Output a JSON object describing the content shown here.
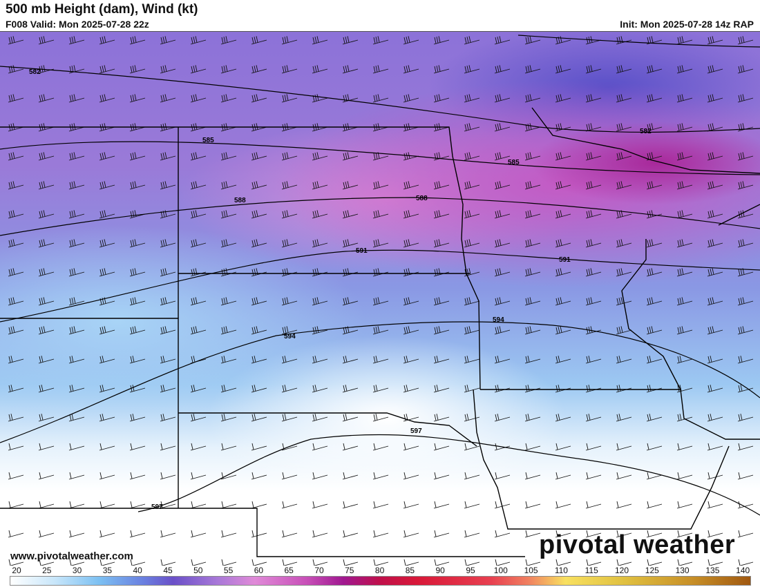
{
  "header": {
    "title": "500 mb Height (dam), Wind (kt)",
    "valid": "F008 Valid: Mon 2025-07-28 22z",
    "init": "Init: Mon 2025-07-28 14z RAP"
  },
  "map": {
    "contour_labels": [
      "582",
      "582",
      "585",
      "585",
      "588",
      "588",
      "591",
      "591",
      "594",
      "594",
      "597",
      "597"
    ],
    "colors": {
      "max_wind": "#a8289a",
      "low_wind": "#ffffff",
      "mid_wind": "#8c72d8"
    }
  },
  "footer": {
    "url": "www.pivotalweather.com",
    "logo": "pivotal weather"
  },
  "colorbar": {
    "ticks": [
      "20",
      "25",
      "30",
      "35",
      "40",
      "45",
      "50",
      "55",
      "60",
      "65",
      "70",
      "75",
      "80",
      "85",
      "90",
      "95",
      "100",
      "105",
      "110",
      "115",
      "120",
      "125",
      "130",
      "135",
      "140"
    ]
  }
}
